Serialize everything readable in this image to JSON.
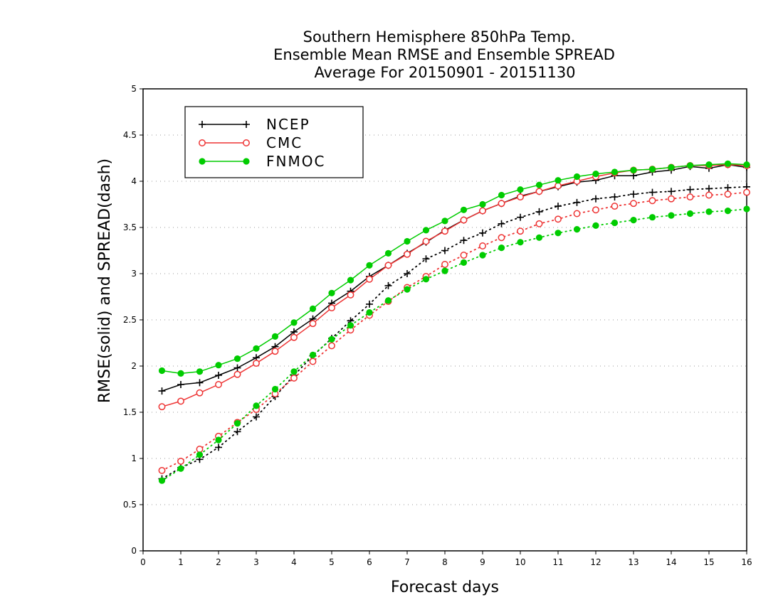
{
  "chart_data": {
    "type": "line",
    "title_lines": [
      "Southern Hemisphere 850hPa Temp.",
      "Ensemble Mean RMSE and Ensemble SPREAD",
      "Average For 20150901 - 20151130"
    ],
    "xlabel": "Forecast days",
    "ylabel": "RMSE(solid) and SPREAD(dash)",
    "xlim": [
      0,
      16
    ],
    "ylim": [
      0,
      5
    ],
    "x_ticks": [
      "0",
      "1",
      "2",
      "3",
      "4",
      "5",
      "6",
      "7",
      "8",
      "9",
      "10",
      "11",
      "12",
      "13",
      "14",
      "15",
      "16"
    ],
    "y_ticks": [
      "0",
      "0.5",
      "1",
      "1.5",
      "2",
      "2.5",
      "3",
      "3.5",
      "4",
      "4.5",
      "5"
    ],
    "grid": "horizontal dotted",
    "legend_position": "top-left",
    "x": [
      0.5,
      1,
      1.5,
      2,
      2.5,
      3,
      3.5,
      4,
      4.5,
      5,
      5.5,
      6,
      6.5,
      7,
      7.5,
      8,
      8.5,
      9,
      9.5,
      10,
      10.5,
      11,
      11.5,
      12,
      12.5,
      13,
      13.5,
      14,
      14.5,
      15,
      15.5,
      16
    ],
    "series": [
      {
        "name": "NCEP",
        "color": "#000000",
        "marker": "plus",
        "rmse": [
          1.73,
          1.8,
          1.82,
          1.9,
          1.98,
          2.09,
          2.21,
          2.37,
          2.51,
          2.68,
          2.81,
          2.97,
          3.09,
          3.22,
          3.34,
          3.47,
          3.58,
          3.68,
          3.76,
          3.84,
          3.89,
          3.94,
          3.99,
          4.01,
          4.06,
          4.06,
          4.1,
          4.12,
          4.16,
          4.14,
          4.18,
          4.15
        ],
        "spread": [
          0.78,
          0.9,
          0.99,
          1.12,
          1.29,
          1.45,
          1.67,
          1.9,
          2.11,
          2.3,
          2.49,
          2.67,
          2.87,
          3.0,
          3.16,
          3.25,
          3.36,
          3.44,
          3.54,
          3.61,
          3.67,
          3.73,
          3.77,
          3.81,
          3.83,
          3.86,
          3.88,
          3.89,
          3.91,
          3.92,
          3.93,
          3.94
        ]
      },
      {
        "name": "CMC",
        "color": "#ee3333",
        "marker": "circle-open",
        "rmse": [
          1.56,
          1.62,
          1.71,
          1.8,
          1.91,
          2.03,
          2.16,
          2.31,
          2.46,
          2.63,
          2.77,
          2.94,
          3.09,
          3.21,
          3.35,
          3.46,
          3.58,
          3.68,
          3.76,
          3.83,
          3.89,
          3.95,
          4.0,
          4.05,
          4.09,
          4.12,
          4.13,
          4.15,
          4.17,
          4.17,
          4.18,
          4.17
        ],
        "spread": [
          0.87,
          0.97,
          1.1,
          1.24,
          1.39,
          1.53,
          1.7,
          1.87,
          2.05,
          2.22,
          2.39,
          2.55,
          2.7,
          2.85,
          2.97,
          3.1,
          3.2,
          3.3,
          3.39,
          3.46,
          3.54,
          3.59,
          3.65,
          3.69,
          3.73,
          3.76,
          3.79,
          3.81,
          3.83,
          3.85,
          3.86,
          3.88
        ]
      },
      {
        "name": "FNMOC",
        "color": "#00cc00",
        "marker": "circle-filled",
        "rmse": [
          1.95,
          1.92,
          1.94,
          2.01,
          2.08,
          2.19,
          2.32,
          2.47,
          2.62,
          2.79,
          2.93,
          3.09,
          3.22,
          3.35,
          3.47,
          3.57,
          3.69,
          3.75,
          3.85,
          3.91,
          3.96,
          4.01,
          4.05,
          4.08,
          4.1,
          4.12,
          4.13,
          4.15,
          4.17,
          4.18,
          4.19,
          4.18
        ],
        "spread": [
          0.76,
          0.89,
          1.04,
          1.2,
          1.38,
          1.57,
          1.75,
          1.94,
          2.12,
          2.29,
          2.44,
          2.58,
          2.71,
          2.83,
          2.94,
          3.03,
          3.12,
          3.2,
          3.28,
          3.34,
          3.39,
          3.44,
          3.48,
          3.52,
          3.55,
          3.58,
          3.61,
          3.63,
          3.65,
          3.67,
          3.68,
          3.7
        ]
      }
    ]
  }
}
